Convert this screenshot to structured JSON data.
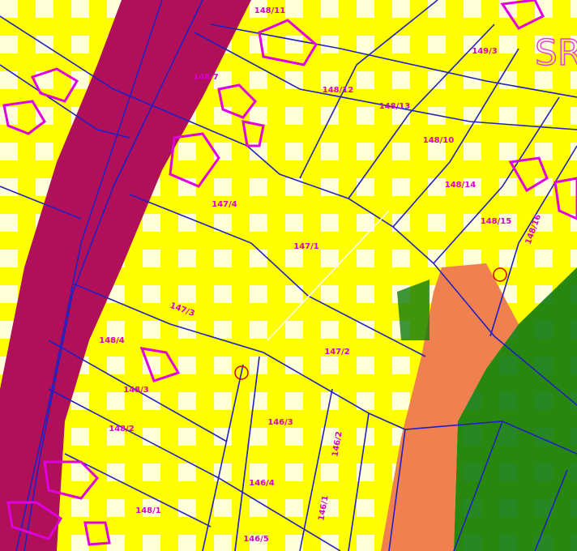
{
  "map": {
    "big_label": "SR",
    "parcels": [
      "148/11",
      "149/3",
      "148/7",
      "148/12",
      "148/13",
      "148/10",
      "148/14",
      "148/15",
      "148/16",
      "147/4",
      "147/1",
      "147/3",
      "147/2",
      "148/4",
      "148/3",
      "148/2",
      "146/3",
      "146/2",
      "146/4",
      "146/1",
      "148/1",
      "146/5"
    ]
  }
}
